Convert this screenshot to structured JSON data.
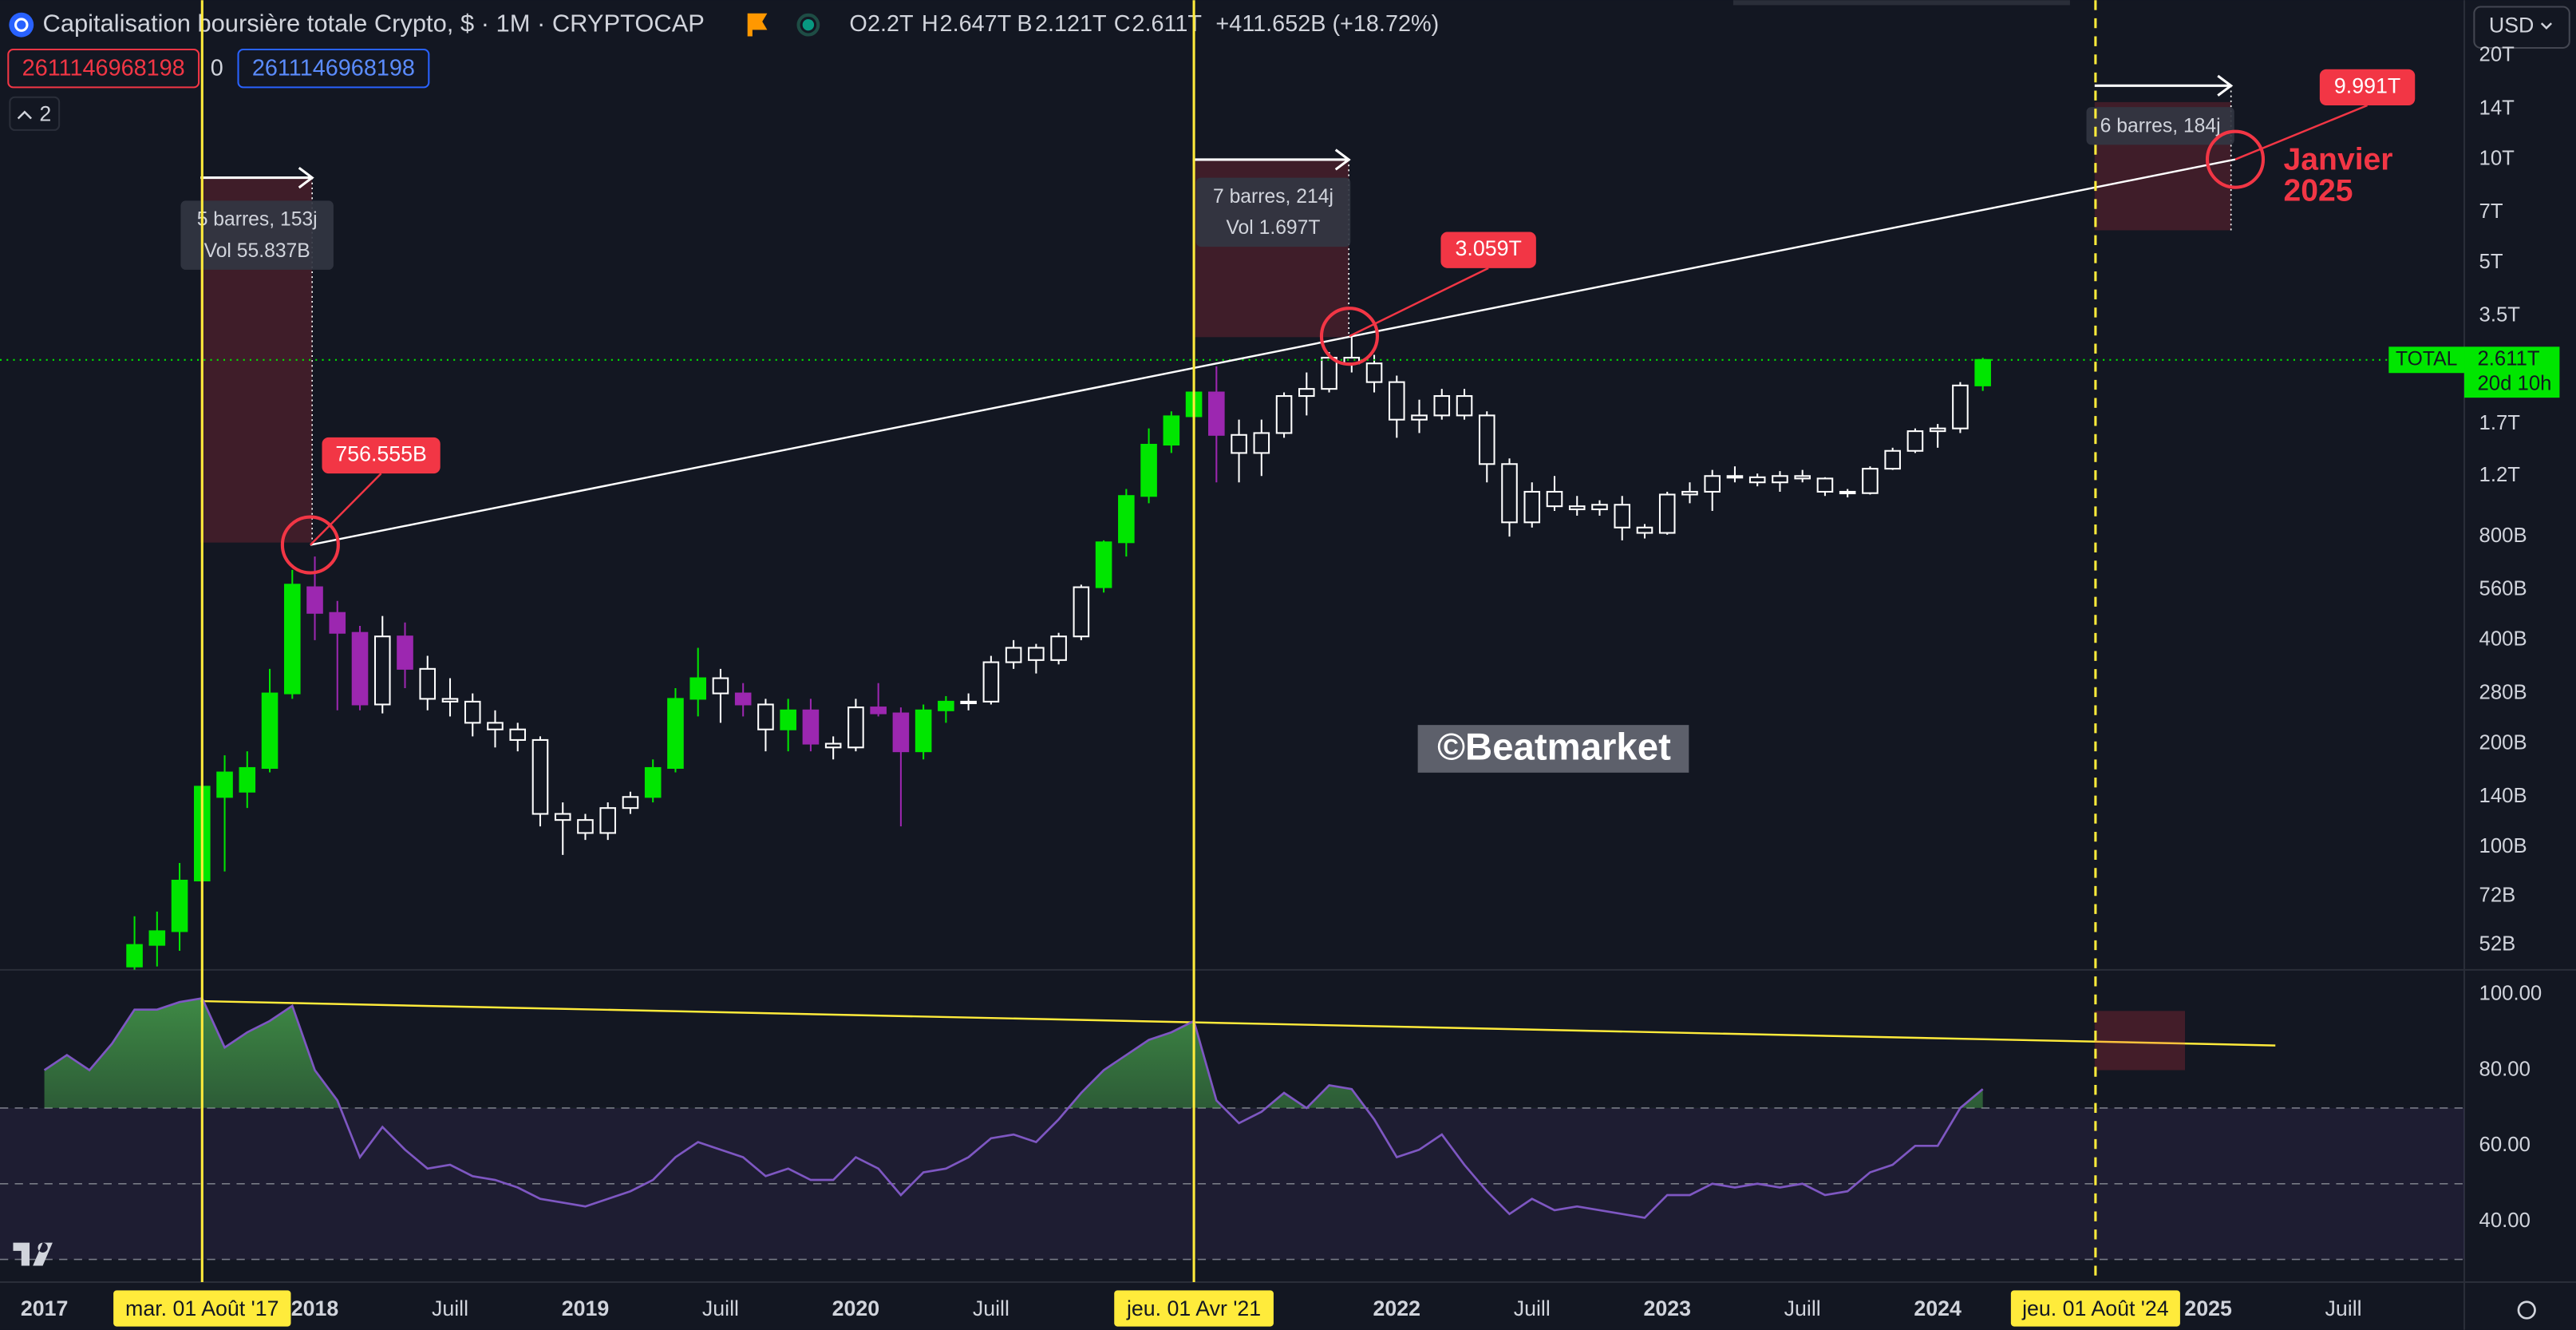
{
  "header": {
    "title": "Capitalisation boursière totale Crypto, $ · 1M · CRYPTOCAP",
    "ohlc": [
      {
        "key": "O",
        "value": "2.2T"
      },
      {
        "key": "H",
        "value": "2.647T"
      },
      {
        "key": "B",
        "value": "2.121T"
      },
      {
        "key": "C",
        "value": "2.611T"
      }
    ],
    "change": "+411.652B (+18.72%)"
  },
  "inputs": [
    "2611146968198",
    "0",
    "2611146968198"
  ],
  "layers": "2",
  "currency": "USD",
  "watermark": "©Beatmarket",
  "chart_data": [
    {
      "type": "candlestick",
      "categories": [
        "2017",
        null,
        null,
        null,
        null,
        null,
        null,
        null,
        null,
        null,
        null,
        null,
        "2018",
        null,
        null,
        null,
        null,
        null,
        "Juill",
        null,
        null,
        null,
        null,
        null,
        "2019",
        null,
        null,
        null,
        null,
        null,
        "Juill",
        null,
        null,
        null,
        null,
        null,
        "2020",
        null,
        null,
        null,
        null,
        null,
        "Juill",
        null,
        null,
        null,
        null,
        null,
        null,
        null,
        null,
        null,
        null,
        null,
        null,
        null,
        null,
        null,
        null,
        null,
        "2022",
        null,
        null,
        null,
        null,
        null,
        "Juill",
        null,
        null,
        null,
        null,
        null,
        "2023",
        null,
        null,
        null,
        null,
        null,
        "Juill",
        null,
        null,
        null,
        null,
        null,
        "2024",
        null,
        null,
        null,
        null,
        null,
        null,
        null,
        null,
        null,
        null,
        null,
        "2025",
        null,
        null,
        null,
        null,
        null,
        "Juill",
        null,
        null,
        null,
        null,
        null
      ],
      "open": [
        null,
        null,
        null,
        null,
        45,
        52,
        57,
        80,
        140,
        145,
        170,
        280,
        570,
        480,
        420,
        260,
        410,
        330,
        270,
        265,
        230,
        220,
        205,
        125,
        120,
        110,
        130,
        140,
        170,
        270,
        310,
        280,
        260,
        220,
        250,
        200,
        195,
        255,
        245,
        190,
        250,
        265,
        265,
        345,
        380,
        350,
        410,
        570,
        770,
        1050,
        1480,
        1790,
        2100,
        1580,
        1400,
        1600,
        2050,
        2150,
        2650,
        2550,
        2250,
        1750,
        1800,
        2050,
        1800,
        1300,
        880,
        1080,
        980,
        960,
        990,
        850,
        820,
        1060,
        1080,
        1200,
        1190,
        1150,
        1200,
        1180,
        1080,
        1070,
        1260,
        1420,
        1620,
        1650,
        2200,
        null,
        null,
        null,
        null,
        null,
        null,
        null,
        null,
        null,
        null,
        null,
        null,
        null,
        null,
        null,
        null,
        null,
        null,
        null,
        null,
        null
      ],
      "high": [
        null,
        null,
        null,
        null,
        63,
        65,
        90,
        160,
        185,
        190,
        330,
        640,
        700,
        520,
        440,
        470,
        450,
        360,
        310,
        280,
        250,
        230,
        210,
        135,
        125,
        135,
        145,
        180,
        290,
        380,
        330,
        300,
        270,
        270,
        270,
        210,
        270,
        300,
        255,
        260,
        275,
        280,
        360,
        400,
        390,
        420,
        580,
        780,
        1100,
        1650,
        1850,
        2200,
        2500,
        1750,
        1750,
        2100,
        2400,
        2750,
        3059,
        2700,
        2350,
        2000,
        2150,
        2150,
        1850,
        1350,
        1150,
        1200,
        1050,
        1020,
        1050,
        870,
        1080,
        1150,
        1250,
        1280,
        1220,
        1240,
        1250,
        1190,
        1100,
        1280,
        1450,
        1650,
        1700,
        2250,
        2647,
        null,
        null,
        null,
        null,
        null,
        null,
        null,
        null,
        null,
        null,
        null,
        null,
        null,
        null,
        null,
        null,
        null,
        null,
        null,
        null,
        null
      ],
      "low": [
        null,
        null,
        null,
        null,
        44,
        45,
        50,
        78,
        85,
        130,
        165,
        270,
        400,
        250,
        250,
        245,
        290,
        250,
        240,
        210,
        195,
        190,
        115,
        95,
        105,
        105,
        125,
        135,
        165,
        240,
        230,
        240,
        190,
        190,
        190,
        180,
        190,
        240,
        115,
        180,
        230,
        250,
        260,
        330,
        320,
        340,
        400,
        550,
        700,
        1000,
        1400,
        1700,
        1150,
        1150,
        1200,
        1550,
        1800,
        2100,
        2400,
        2100,
        1550,
        1600,
        1750,
        1750,
        1150,
        800,
        850,
        950,
        920,
        920,
        780,
        790,
        810,
        1000,
        950,
        1150,
        1120,
        1080,
        1150,
        1050,
        1040,
        1060,
        1250,
        1400,
        1450,
        1600,
        2121,
        null,
        null,
        null,
        null,
        null,
        null,
        null,
        null,
        null,
        null,
        null,
        null,
        null,
        null,
        null,
        null,
        null,
        null,
        null,
        null,
        null
      ],
      "close": [
        null,
        null,
        null,
        null,
        52,
        57,
        80,
        150,
        165,
        170,
        280,
        580,
        480,
        420,
        260,
        410,
        330,
        270,
        265,
        230,
        220,
        205,
        125,
        120,
        110,
        130,
        140,
        170,
        270,
        310,
        280,
        260,
        220,
        250,
        200,
        195,
        255,
        245,
        190,
        250,
        265,
        265,
        345,
        380,
        350,
        410,
        570,
        770,
        1050,
        1480,
        1790,
        2100,
        1580,
        1400,
        1600,
        2050,
        2150,
        2650,
        2550,
        2250,
        1750,
        1800,
        2050,
        1800,
        1300,
        880,
        1080,
        980,
        960,
        990,
        850,
        820,
        1060,
        1080,
        1200,
        1190,
        1150,
        1200,
        1180,
        1080,
        1070,
        1260,
        1420,
        1620,
        1650,
        2200,
        2611,
        null,
        null,
        null,
        null,
        null,
        null,
        null,
        null,
        null,
        null,
        null,
        null,
        null,
        null,
        null,
        null,
        null,
        null,
        null,
        null,
        null
      ],
      "colors": [
        null,
        null,
        null,
        null,
        "#00e600",
        "#00e600",
        "#00e600",
        "#00e600",
        "#00e600",
        "#00e600",
        "#00e600",
        "#00e600",
        "#9c27b0",
        "#9c27b0",
        "#9c27b0",
        "#ffffff",
        "#9c27b0",
        "#ffffff",
        "#ffffff",
        "#ffffff",
        "#ffffff",
        "#ffffff",
        "#ffffff",
        "#ffffff",
        "#ffffff",
        "#ffffff",
        "#ffffff",
        "#00e600",
        "#00e600",
        "#00e600",
        "#ffffff",
        "#9c27b0",
        "#ffffff",
        "#00e600",
        "#9c27b0",
        "#ffffff",
        "#ffffff",
        "#9c27b0",
        "#9c27b0",
        "#00e600",
        "#00e600",
        "#ffffff",
        "#ffffff",
        "#ffffff",
        "#ffffff",
        "#ffffff",
        "#ffffff",
        "#00e600",
        "#00e600",
        "#00e600",
        "#00e600",
        "#00e600",
        "#9c27b0",
        "#ffffff",
        "#ffffff",
        "#ffffff",
        "#ffffff",
        "#ffffff",
        "#ffffff",
        "#ffffff",
        "#ffffff",
        "#ffffff",
        "#ffffff",
        "#ffffff",
        "#ffffff",
        "#ffffff",
        "#ffffff",
        "#ffffff",
        "#ffffff",
        "#ffffff",
        "#ffffff",
        "#ffffff",
        "#ffffff",
        "#ffffff",
        "#ffffff",
        "#ffffff",
        "#ffffff",
        "#ffffff",
        "#ffffff",
        "#ffffff",
        "#ffffff",
        "#ffffff",
        "#ffffff",
        "#ffffff",
        "#ffffff",
        "#ffffff",
        "#00e600",
        null,
        null,
        null,
        null,
        null,
        null,
        null,
        null,
        null,
        null,
        null,
        null,
        null,
        null,
        null,
        null,
        null,
        null,
        null,
        null,
        null
      ],
      "hollow_color": "#ffffff",
      "log_scale": true,
      "grid": false,
      "ylim": [
        44,
        29000
      ],
      "yticks": [
        {
          "value": 20000,
          "label": "20T"
        },
        {
          "value": 14000,
          "label": "14T"
        },
        {
          "value": 10000,
          "label": "10T"
        },
        {
          "value": 7000,
          "label": "7T"
        },
        {
          "value": 5000,
          "label": "5T"
        },
        {
          "value": 3500,
          "label": "3.5T"
        },
        {
          "value": 1700,
          "label": "1.7T"
        },
        {
          "value": 1200,
          "label": "1.2T"
        },
        {
          "value": 800,
          "label": "800B"
        },
        {
          "value": 560,
          "label": "560B"
        },
        {
          "value": 400,
          "label": "400B"
        },
        {
          "value": 280,
          "label": "280B"
        },
        {
          "value": 200,
          "label": "200B"
        },
        {
          "value": 140,
          "label": "140B"
        },
        {
          "value": 100,
          "label": "100B"
        },
        {
          "value": 72,
          "label": "72B"
        },
        {
          "value": 52,
          "label": "52B"
        }
      ],
      "last_price": {
        "symbol": "TOTAL",
        "label": "2.611T",
        "countdown": "20d 10h",
        "color": "#00e600"
      },
      "price_markers": [
        {
          "label": "756.555B",
          "value": 756.555
        },
        {
          "label": "3.059T",
          "value": 3059
        },
        {
          "label": "9.991T",
          "value": 9991
        }
      ],
      "ranges": [
        {
          "bars": "5 barres, 153j",
          "volume": "Vol 55.837B"
        },
        {
          "bars": "7 barres, 214j",
          "volume": "Vol 1.697T"
        },
        {
          "bars": "6 barres, 184j"
        }
      ],
      "date_markers": [
        "mar. 01 Août '17",
        "jeu. 01 Avr '21",
        "jeu. 01 Août '24"
      ],
      "annotation": [
        "Janvier",
        "2025"
      ]
    },
    {
      "type": "line",
      "values": [
        80,
        84,
        80,
        87,
        96,
        96,
        98,
        99,
        86,
        90,
        93,
        97,
        80,
        72,
        57,
        65,
        59,
        54,
        55,
        52,
        51,
        49,
        46,
        45,
        44,
        46,
        48,
        51,
        57,
        61,
        59,
        57,
        52,
        54,
        51,
        51,
        57,
        54,
        47,
        53,
        54,
        57,
        62,
        63,
        61,
        67,
        74,
        80,
        84,
        88,
        90,
        93,
        72,
        66,
        69,
        74,
        70,
        76,
        75,
        67,
        57,
        59,
        63,
        55,
        48,
        42,
        46,
        43,
        44,
        43,
        42,
        41,
        47,
        47,
        50,
        49,
        50,
        49,
        50,
        47,
        48,
        53,
        55,
        60,
        60,
        70,
        75,
        null,
        null,
        null,
        null,
        null,
        null,
        null,
        null,
        null,
        null,
        null,
        null,
        null,
        null,
        null,
        null,
        null,
        null,
        null,
        null,
        null
      ],
      "color": "#7e57c2",
      "ylim": [
        24,
        106.5
      ],
      "yticks": [
        {
          "value": 100,
          "label": "100.00"
        },
        {
          "value": 80,
          "label": "80.00"
        },
        {
          "value": 60,
          "label": "60.00"
        },
        {
          "value": 40,
          "label": "40.00"
        }
      ],
      "levels": [
        70,
        50,
        30
      ]
    }
  ]
}
